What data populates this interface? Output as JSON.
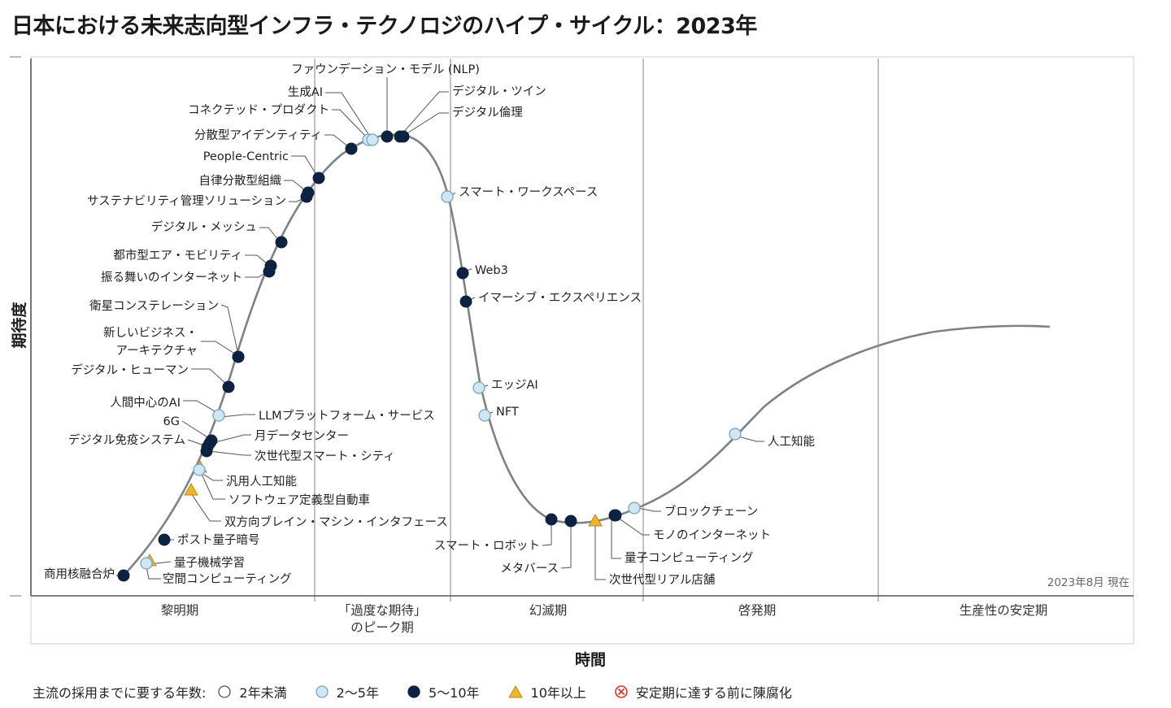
{
  "title": "日本における未来志向型インフラ・テクノロジのハイプ・サイクル：2023年",
  "axes": {
    "y_label": "期待度",
    "x_label": "時間"
  },
  "note": "2023年8月 現在",
  "phases": [
    {
      "label": "黎明期"
    },
    {
      "label": "「過度な期待」\nのピーク期"
    },
    {
      "label": "幻滅期"
    },
    {
      "label": "啓発期"
    },
    {
      "label": "生産性の安定期"
    }
  ],
  "legend": {
    "title": "主流の採用までに要する年数:",
    "items": [
      {
        "label": "2年未満",
        "shape": "circle",
        "fill": "#ffffff",
        "stroke": "#555555"
      },
      {
        "label": "2〜5年",
        "shape": "circle",
        "fill": "#cfe6f3",
        "stroke": "#7aa3bd"
      },
      {
        "label": "5〜10年",
        "shape": "circle",
        "fill": "#0d2240",
        "stroke": "#0d2240"
      },
      {
        "label": "10年以上",
        "shape": "triangle",
        "fill": "#f0b429",
        "stroke": "#b98a1f"
      },
      {
        "label": "安定期に達する前に陳腐化",
        "shape": "x-circle",
        "fill": "#ffffff",
        "stroke": "#d9342b"
      }
    ]
  },
  "colors": {
    "curve": "#7d8287",
    "two_to_five": "#cfe6f3",
    "five_to_ten": "#0d2240",
    "over_ten": "#f0b429",
    "obsolete": "#d9342b"
  },
  "technologies": [
    {
      "label": "商用核融合炉",
      "category": "5-10"
    },
    {
      "label": "量子機械学習",
      "category": "10+"
    },
    {
      "label": "空間コンピューティング",
      "category": "2-5"
    },
    {
      "label": "ポスト量子暗号",
      "category": "5-10"
    },
    {
      "label": "双方向ブレイン・マシン・インタフェース",
      "category": "10+"
    },
    {
      "label": "ソフトウェア定義型自動車",
      "category": "10+"
    },
    {
      "label": "汎用人工知能",
      "category": "2-5"
    },
    {
      "label": "次世代型スマート・シティ",
      "category": "5-10"
    },
    {
      "label": "デジタル免疫システム",
      "category": "5-10"
    },
    {
      "label": "月データセンター",
      "category": "5-10"
    },
    {
      "label": "6G",
      "category": "5-10"
    },
    {
      "label": "LLMプラットフォーム・サービス",
      "category": "2-5"
    },
    {
      "label": "人間中心のAI",
      "category": "2-5"
    },
    {
      "label": "デジタル・ヒューマン",
      "category": "5-10"
    },
    {
      "label": "新しいビジネス・\nアーキテクチャ",
      "category": "2-5"
    },
    {
      "label": "衛星コンステレーション",
      "category": "5-10"
    },
    {
      "label": "振る舞いのインターネット",
      "category": "5-10"
    },
    {
      "label": "都市型エア・モビリティ",
      "category": "5-10"
    },
    {
      "label": "デジタル・メッシュ",
      "category": "5-10"
    },
    {
      "label": "サステナビリティ管理ソリューション",
      "category": "5-10"
    },
    {
      "label": "自律分散型組織",
      "category": "5-10"
    },
    {
      "label": "People-Centric",
      "category": "5-10"
    },
    {
      "label": "分散型アイデンティティ",
      "category": "5-10"
    },
    {
      "label": "コネクテッド・プロダクト",
      "category": "2-5"
    },
    {
      "label": "生成AI",
      "category": "2-5"
    },
    {
      "label": "ファウンデーション・モデル (NLP)",
      "category": "5-10"
    },
    {
      "label": "デジタル・ツイン",
      "category": "5-10"
    },
    {
      "label": "デジタル倫理",
      "category": "5-10"
    },
    {
      "label": "スマート・ワークスペース",
      "category": "2-5"
    },
    {
      "label": "Web3",
      "category": "5-10"
    },
    {
      "label": "イマーシブ・エクスペリエンス",
      "category": "5-10"
    },
    {
      "label": "エッジAI",
      "category": "2-5"
    },
    {
      "label": "NFT",
      "category": "2-5"
    },
    {
      "label": "スマート・ロボット",
      "category": "5-10"
    },
    {
      "label": "メタバース",
      "category": "5-10"
    },
    {
      "label": "次世代型リアル店舗",
      "category": "10+"
    },
    {
      "label": "量子コンピューティング",
      "category": "5-10"
    },
    {
      "label": "モノのインターネット",
      "category": "5-10"
    },
    {
      "label": "ブロックチェーン",
      "category": "2-5"
    },
    {
      "label": "人工知能",
      "category": "2-5"
    }
  ]
}
